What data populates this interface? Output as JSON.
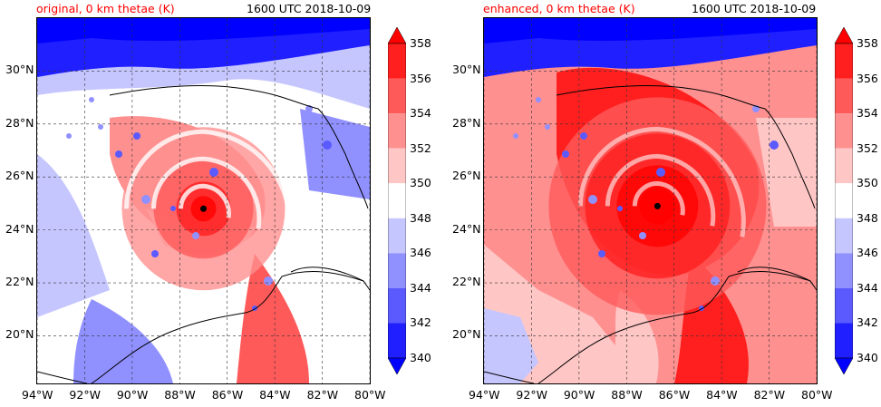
{
  "chart_data": [
    {
      "type": "heatmap",
      "title": "original, 0 km thetae (K)",
      "time_label": "1600 UTC 2018-10-09",
      "x_ticks": [
        "94°W",
        "92°W",
        "90°W",
        "88°W",
        "86°W",
        "84°W",
        "82°W",
        "80°W"
      ],
      "y_ticks": [
        "30°N",
        "28°N",
        "26°N",
        "24°N",
        "22°N",
        "20°N"
      ],
      "xlim": [
        -94,
        -80
      ],
      "ylim": [
        18.2,
        32
      ],
      "storm_center": {
        "lon": -87.0,
        "lat": 24.8
      },
      "grid": true,
      "colorbar": {
        "levels": [
          340,
          342,
          344,
          346,
          348,
          350,
          352,
          354,
          356,
          358
        ],
        "labels": [
          "358",
          "356",
          "354",
          "352",
          "350",
          "348",
          "346",
          "344",
          "342",
          "340"
        ],
        "colors": [
          "#0000ff",
          "#1f1fff",
          "#5a5aff",
          "#9090ff",
          "#c6c6ff",
          "#ffffff",
          "#ffc6c6",
          "#ff9090",
          "#ff5a5a",
          "#ff1f1f",
          "#ff0000"
        ],
        "extend": "both"
      }
    },
    {
      "type": "heatmap",
      "title": "enhanced, 0 km thetae (K)",
      "time_label": "1600 UTC 2018-10-09",
      "x_ticks": [
        "94°W",
        "92°W",
        "90°W",
        "88°W",
        "86°W",
        "84°W",
        "82°W",
        "80°W"
      ],
      "y_ticks": [
        "30°N",
        "28°N",
        "26°N",
        "24°N",
        "22°N",
        "20°N"
      ],
      "xlim": [
        -94,
        -80
      ],
      "ylim": [
        18.2,
        32
      ],
      "storm_center": {
        "lon": -86.7,
        "lat": 24.9
      },
      "grid": true,
      "colorbar": {
        "levels": [
          340,
          342,
          344,
          346,
          348,
          350,
          352,
          354,
          356,
          358
        ],
        "labels": [
          "358",
          "356",
          "354",
          "352",
          "350",
          "348",
          "346",
          "344",
          "342",
          "340"
        ],
        "colors": [
          "#0000ff",
          "#1f1fff",
          "#5a5aff",
          "#9090ff",
          "#c6c6ff",
          "#ffffff",
          "#ffc6c6",
          "#ff9090",
          "#ff5a5a",
          "#ff1f1f",
          "#ff0000"
        ],
        "extend": "both"
      }
    }
  ]
}
